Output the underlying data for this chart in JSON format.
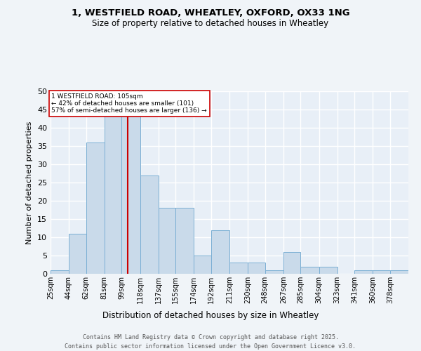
{
  "title_line1": "1, WESTFIELD ROAD, WHEATLEY, OXFORD, OX33 1NG",
  "title_line2": "Size of property relative to detached houses in Wheatley",
  "xlabel": "Distribution of detached houses by size in Wheatley",
  "ylabel": "Number of detached properties",
  "bar_color": "#c9daea",
  "bar_edge_color": "#7bafd4",
  "background_color": "#e8eff7",
  "grid_color": "#ffffff",
  "annotation_text": "1 WESTFIELD ROAD: 105sqm\n← 42% of detached houses are smaller (101)\n57% of semi-detached houses are larger (136) →",
  "ref_line_x": 105,
  "ref_line_color": "#cc0000",
  "annotation_box_color": "#ffffff",
  "annotation_box_edge": "#cc0000",
  "bins": [
    25,
    44,
    62,
    81,
    99,
    118,
    137,
    155,
    174,
    192,
    211,
    230,
    248,
    267,
    285,
    304,
    323,
    341,
    360,
    378,
    397
  ],
  "counts": [
    1,
    11,
    36,
    45,
    45,
    27,
    18,
    18,
    5,
    12,
    3,
    3,
    1,
    6,
    2,
    2,
    0,
    1,
    1,
    1
  ],
  "ylim": [
    0,
    50
  ],
  "yticks": [
    0,
    5,
    10,
    15,
    20,
    25,
    30,
    35,
    40,
    45,
    50
  ],
  "footer_line1": "Contains HM Land Registry data © Crown copyright and database right 2025.",
  "footer_line2": "Contains public sector information licensed under the Open Government Licence v3.0.",
  "fig_width": 6.0,
  "fig_height": 5.0,
  "fig_dpi": 100
}
